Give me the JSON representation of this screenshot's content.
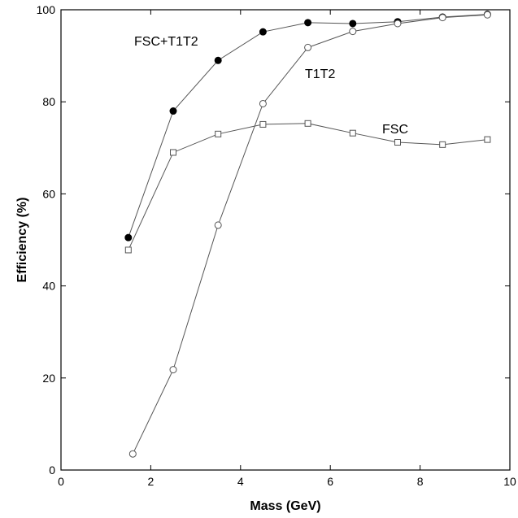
{
  "chart_data": {
    "type": "line",
    "title": "",
    "xlabel": "Mass (GeV)",
    "ylabel": "Efficiency (%)",
    "xlim": [
      0,
      10
    ],
    "ylim": [
      0,
      100
    ],
    "xticks": [
      0,
      2,
      4,
      6,
      8,
      10
    ],
    "yticks": [
      0,
      20,
      40,
      60,
      80,
      100
    ],
    "grid": false,
    "legend": "none",
    "series": [
      {
        "name": "FSC+T1T2",
        "marker": "filled-circle",
        "color": "#000000",
        "x": [
          1.5,
          2.5,
          3.5,
          4.5,
          5.5,
          6.5,
          7.5,
          8.5,
          9.5
        ],
        "y": [
          50.5,
          78,
          89,
          95.2,
          97.2,
          97,
          97.4,
          98.4,
          99
        ]
      },
      {
        "name": "T1T2",
        "marker": "open-circle",
        "color": "#555555",
        "x": [
          1.6,
          2.5,
          3.5,
          4.5,
          5.5,
          6.5,
          7.5,
          8.5,
          9.5
        ],
        "y": [
          3.5,
          21.8,
          53.2,
          79.6,
          91.8,
          95.3,
          97,
          98.3,
          98.9
        ]
      },
      {
        "name": "FSC",
        "marker": "open-square",
        "color": "#555555",
        "x": [
          1.5,
          2.5,
          3.5,
          4.5,
          5.5,
          6.5,
          7.5,
          8.5,
          9.5
        ],
        "y": [
          47.8,
          69,
          73,
          75.1,
          75.3,
          73.2,
          71.2,
          70.7,
          71.8
        ]
      }
    ]
  }
}
